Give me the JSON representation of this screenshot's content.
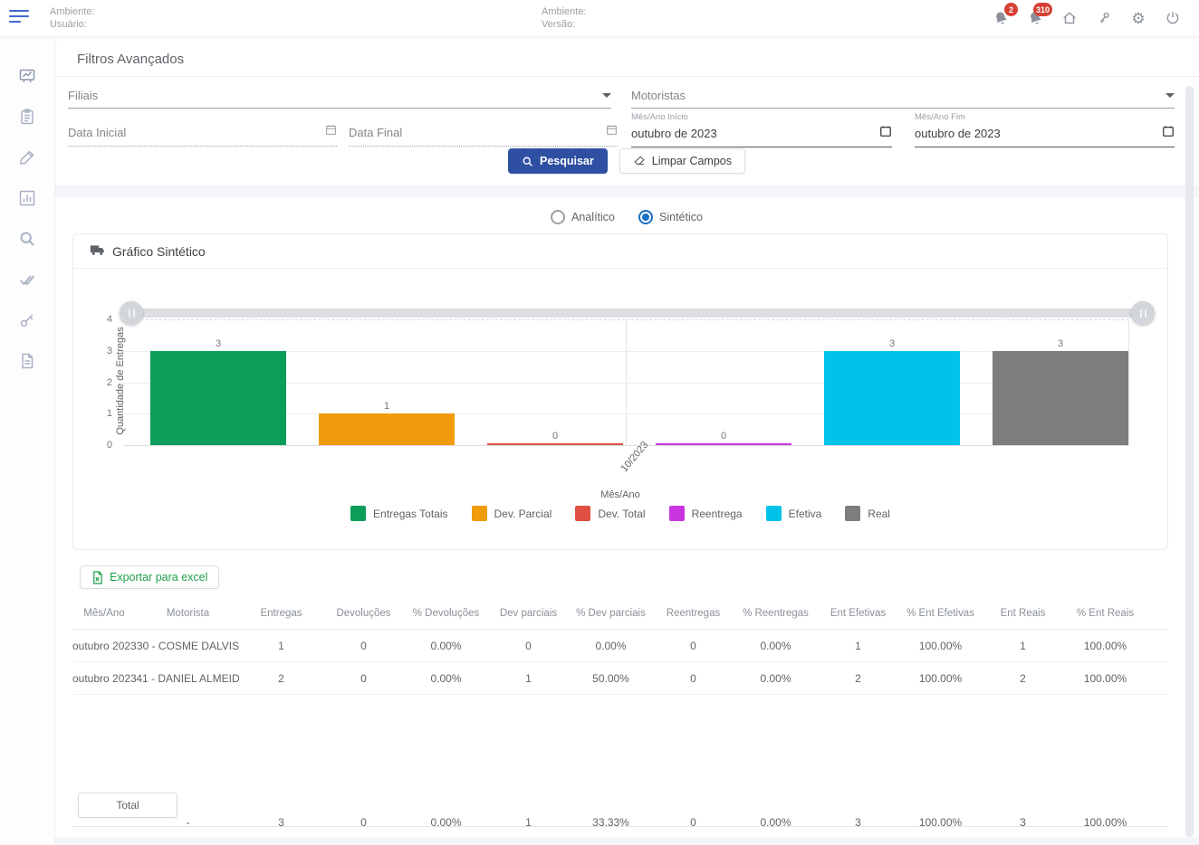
{
  "header": {
    "left": {
      "ambiente_label": "Ambiente:",
      "usuario_label": "Usuário:"
    },
    "center": {
      "ambiente_label": "Ambiente:",
      "versao_label": "Versão:"
    },
    "notifications": {
      "badge_alerts": "2",
      "badge_messages": "310"
    },
    "icon_names": [
      "menu-icon",
      "bell-icon",
      "bell-icon",
      "home-icon",
      "key-icon",
      "gear-icon",
      "power-icon"
    ]
  },
  "sidebar": {
    "icon_names": [
      "dashboard-chart-icon",
      "clipboard-icon",
      "pencil-icon",
      "bar-chart-icon",
      "search-icon",
      "double-check-icon",
      "key-icon",
      "document-icon"
    ]
  },
  "filters": {
    "title": "Filtros Avançados",
    "filiais_label": "Filiais",
    "motoristas_label": "Motoristas",
    "data_inicial_label": "Data Inicial",
    "data_final_label": "Data Final",
    "mes_ano_inicio_label": "Mês/Ano Início",
    "mes_ano_inicio_value": "outubro de 2023",
    "mes_ano_fim_label": "Mês/Ano Fim",
    "mes_ano_fim_value": "outubro de 2023",
    "pesquisar_label": "Pesquisar",
    "limpar_label": "Limpar Campos"
  },
  "view_toggle": {
    "options": [
      "Analítico",
      "Sintético"
    ],
    "selected": "Sintético"
  },
  "chart_card": {
    "title": "Gráfico Sintético"
  },
  "chart_data": {
    "type": "bar",
    "title": "Gráfico Sintético",
    "categories": [
      "10/2023"
    ],
    "series": [
      {
        "name": "Entregas Totais",
        "color": "#0b9e5a",
        "values": [
          3
        ]
      },
      {
        "name": "Dev. Parcial",
        "color": "#f09b0c",
        "values": [
          1
        ]
      },
      {
        "name": "Dev. Total",
        "color": "#e05043",
        "values": [
          0
        ]
      },
      {
        "name": "Reentrega",
        "color": "#c935e0",
        "values": [
          0
        ]
      },
      {
        "name": "Efetiva",
        "color": "#00c3ea",
        "values": [
          3
        ]
      },
      {
        "name": "Real",
        "color": "#7d7d7d",
        "values": [
          3
        ]
      }
    ],
    "xlabel": "Mês/Ano",
    "ylabel": "Quantidade de Entregas",
    "ylim": [
      0,
      4
    ],
    "yticks": [
      0,
      1,
      2,
      3,
      4
    ],
    "legend_position": "bottom",
    "grid": true
  },
  "export_button_label": "Exportar para excel",
  "table": {
    "headers": [
      "Mês/Ano",
      "Motorista",
      "Entregas",
      "Devoluções",
      "% Devoluções",
      "Dev parciais",
      "% Dev parciais",
      "Reentregas",
      "% Reentregas",
      "Ent Efetivas",
      "% Ent Efetivas",
      "Ent Reais",
      "% Ent Reais"
    ],
    "rows": [
      [
        "outubro 2023",
        "30 - COSME DALVIS",
        "1",
        "0",
        "0.00%",
        "0",
        "0.00%",
        "0",
        "0.00%",
        "1",
        "100.00%",
        "1",
        "100.00%"
      ],
      [
        "outubro 2023",
        "41 - DANIEL ALMEID",
        "2",
        "0",
        "0.00%",
        "1",
        "50.00%",
        "0",
        "0.00%",
        "2",
        "100.00%",
        "2",
        "100.00%"
      ]
    ],
    "total_row": [
      "Total",
      "-",
      "3",
      "0",
      "0.00%",
      "1",
      "33.33%",
      "0",
      "0.00%",
      "3",
      "100.00%",
      "3",
      "100.00%"
    ]
  },
  "colors": {
    "accent_blue": "#2f4fa2",
    "radio_blue": "#1a6fc4",
    "badge_red": "#d64033",
    "excel_green": "#1e9e4a",
    "menu_blue": "#4069d0"
  }
}
